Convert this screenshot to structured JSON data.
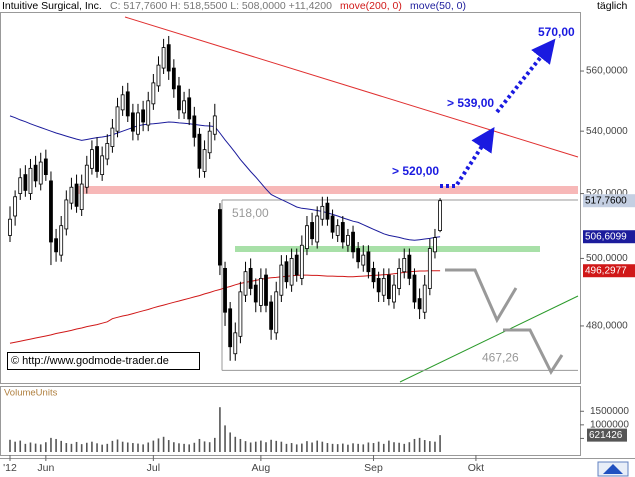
{
  "chart_data": {
    "type": "candlestick",
    "title": "Intuitive Surgical, Inc.",
    "quote": "C: 517,7600 H: 518,5500 L: 508,0000 +11,4200",
    "interval": "täglich",
    "categories": [
      "'12",
      null,
      null,
      null,
      null,
      null,
      null,
      "Jun",
      null,
      null,
      null,
      null,
      null,
      null,
      null,
      null,
      null,
      null,
      null,
      null,
      null,
      null,
      null,
      null,
      null,
      null,
      null,
      null,
      "Jul",
      null,
      null,
      null,
      null,
      null,
      null,
      null,
      null,
      null,
      null,
      null,
      null,
      null,
      null,
      null,
      null,
      null,
      null,
      null,
      null,
      "Aug",
      null,
      null,
      null,
      null,
      null,
      null,
      null,
      null,
      null,
      null,
      null,
      null,
      null,
      null,
      null,
      null,
      null,
      null,
      null,
      null,
      null,
      "Sep",
      null,
      null,
      null,
      null,
      null,
      null,
      null,
      null,
      null,
      null,
      null,
      null,
      null,
      null,
      null,
      null,
      null,
      null,
      null,
      "Okt",
      null,
      null,
      null,
      null,
      null,
      null,
      null,
      null,
      null,
      null,
      null,
      null,
      null,
      null,
      null,
      null,
      null,
      null,
      null
    ],
    "open": [
      507,
      513,
      520,
      526,
      520,
      529,
      523,
      531,
      524,
      506,
      501,
      509,
      517,
      523,
      515,
      522,
      528,
      535,
      526,
      531,
      535,
      540,
      547,
      553,
      546,
      539,
      547,
      542,
      549,
      555,
      561,
      569,
      561,
      555,
      546,
      551,
      545,
      539,
      527,
      533,
      539,
      515,
      497,
      485,
      472,
      477,
      489,
      497,
      492,
      486,
      495,
      487,
      478,
      489,
      499,
      492,
      501,
      494,
      503,
      511,
      505,
      512,
      517,
      513,
      507,
      511,
      504,
      508,
      503,
      498,
      502,
      497,
      494,
      489,
      495,
      487,
      491,
      496,
      501,
      495,
      488,
      484,
      491,
      502,
      508.5,
      null,
      null,
      null,
      null,
      null,
      null,
      null,
      null,
      null,
      null,
      null,
      null,
      null,
      null,
      null,
      null,
      null,
      null,
      null,
      null,
      null,
      null,
      null,
      null,
      null,
      null
    ],
    "high": [
      516,
      521,
      528,
      529,
      531,
      532,
      533,
      534,
      527,
      509,
      513,
      521,
      525,
      526,
      526,
      532,
      537,
      538,
      535,
      539,
      544,
      551,
      555,
      556,
      549,
      549,
      550,
      553,
      559,
      565,
      571,
      572,
      564,
      558,
      553,
      554,
      548,
      541,
      537,
      543,
      549,
      517,
      499,
      487,
      481,
      493,
      499,
      500,
      494,
      497,
      497,
      489,
      493,
      501,
      501,
      503,
      503,
      507,
      513,
      514,
      516,
      519,
      519,
      515,
      512,
      513,
      509,
      510,
      505,
      504,
      504,
      499,
      496,
      497,
      497,
      495,
      500,
      503,
      503,
      497,
      491,
      495,
      506,
      509,
      518.55,
      null,
      null,
      null,
      null,
      null,
      null,
      null,
      null,
      null,
      null,
      null,
      null,
      null,
      null,
      null,
      null,
      null,
      null,
      null,
      null,
      null,
      null,
      null,
      null,
      null,
      null
    ],
    "low": [
      505,
      510,
      518,
      519,
      518,
      522,
      521,
      524,
      498,
      499,
      499,
      507,
      515,
      514,
      513,
      520,
      526,
      525,
      524,
      529,
      533,
      538,
      545,
      543,
      537,
      537,
      540,
      540,
      547,
      553,
      559,
      557,
      551,
      544,
      544,
      542,
      535,
      525,
      525,
      531,
      537,
      495,
      480,
      470,
      470,
      475,
      487,
      489,
      484,
      484,
      484,
      476,
      476,
      487,
      491,
      490,
      493,
      492,
      501,
      504,
      503,
      510,
      510,
      506,
      505,
      503,
      502,
      500,
      497,
      496,
      494,
      491,
      487,
      487,
      486,
      485,
      489,
      494,
      492,
      485,
      482,
      482,
      489,
      500,
      508,
      null,
      null,
      null,
      null,
      null,
      null,
      null,
      null,
      null,
      null,
      null,
      null,
      null,
      null,
      null,
      null,
      null,
      null,
      null,
      null,
      null,
      null,
      null,
      null,
      null,
      null
    ],
    "close": [
      512,
      519,
      525,
      521,
      528,
      524,
      530,
      526,
      505,
      502,
      510,
      518,
      522,
      516,
      523,
      529,
      534,
      527,
      532,
      536,
      541,
      548,
      552,
      545,
      540,
      546,
      543,
      550,
      556,
      562,
      568,
      560,
      554,
      547,
      550,
      544,
      538,
      528,
      534,
      540,
      545,
      498,
      484,
      474,
      478,
      490,
      496,
      491,
      487,
      494,
      486,
      479,
      490,
      498,
      493,
      500,
      495,
      504,
      510,
      506,
      513,
      516,
      512,
      508,
      510,
      505,
      507,
      502,
      499,
      501,
      496,
      493,
      490,
      494,
      488,
      492,
      497,
      500,
      494,
      487,
      485,
      492,
      503,
      506.34,
      517.76,
      null,
      null,
      null,
      null,
      null,
      null,
      null,
      null,
      null,
      null,
      null,
      null,
      null,
      null,
      null,
      null,
      null,
      null,
      null,
      null,
      null,
      null,
      null,
      null,
      null,
      null
    ],
    "close_label": "517,7600",
    "color": "#000000",
    "log_scale": true,
    "ylim": [
      464,
      580
    ],
    "yticks": [
      {
        "value": 480,
        "label": "480,0000"
      },
      {
        "value": 500,
        "label": "500,0000"
      },
      {
        "value": 520,
        "label": "520,0000"
      },
      {
        "value": 540,
        "label": "540,0000"
      },
      {
        "value": 560,
        "label": "560,0000"
      }
    ],
    "series": [
      {
        "name": "move(200, 0)",
        "color": "#d01818",
        "last_label": "496,2977",
        "values": [
          475.0,
          475.3,
          475.6,
          475.9,
          476.2,
          476.5,
          476.8,
          477.1,
          477.4,
          477.8,
          478.1,
          478.4,
          478.7,
          479.1,
          479.4,
          479.8,
          480.1,
          480.4,
          480.8,
          481.2,
          482.1,
          482.5,
          482.9,
          483.2,
          483.6,
          484.0,
          484.4,
          484.8,
          485.3,
          485.7,
          486.1,
          486.5,
          486.9,
          487.3,
          487.7,
          488.1,
          488.5,
          488.9,
          489.4,
          489.8,
          490.3,
          490.7,
          491.2,
          491.6,
          492.1,
          492.5,
          492.8,
          493.1,
          493.4,
          493.7,
          494.0,
          494.2,
          494.3,
          494.5,
          494.6,
          494.8,
          494.9,
          495.0,
          495.0,
          494.9,
          494.9,
          494.8,
          494.7,
          494.7,
          494.6,
          494.6,
          494.5,
          494.5,
          494.6,
          494.7,
          494.8,
          494.9,
          495.0,
          495.1,
          495.2,
          495.4,
          495.6,
          495.8,
          496.0,
          496.1,
          496.2,
          496.2,
          496.3,
          496.3,
          496.2977,
          null,
          null,
          null,
          null,
          null,
          null,
          null,
          null,
          null,
          null,
          null,
          null,
          null,
          null,
          null,
          null,
          null,
          null,
          null,
          null,
          null,
          null,
          null,
          null,
          null,
          null
        ]
      },
      {
        "name": "move(50, 0)",
        "color": "#1c1c9c",
        "last_label": "506,6099",
        "values": [
          545,
          544.4,
          543.7,
          543.1,
          542.4,
          541.8,
          541.2,
          540.6,
          540.0,
          539.4,
          538.9,
          538.4,
          537.9,
          537.4,
          537.0,
          537.3,
          537.6,
          537.9,
          538.1,
          538.4,
          538.8,
          539.4,
          540.0,
          540.6,
          541.2,
          541.8,
          542.1,
          542.3,
          542.4,
          542.6,
          542.8,
          543.0,
          542.9,
          542.7,
          542.6,
          542.4,
          542.2,
          542.0,
          541.8,
          541.7,
          541.5,
          539.4,
          537.2,
          535.1,
          533.0,
          530.8,
          528.9,
          527.0,
          525.2,
          523.3,
          521.4,
          519.7,
          518.9,
          518.1,
          517.4,
          516.6,
          515.8,
          515.4,
          515.2,
          515.0,
          514.7,
          514.4,
          514.0,
          513.5,
          513.0,
          512.4,
          511.9,
          511.4,
          511.0,
          510.3,
          509.6,
          508.9,
          508.2,
          507.5,
          507.0,
          506.7,
          506.4,
          506.0,
          505.7,
          505.5,
          505.7,
          505.9,
          506.1,
          506.4,
          506.6099,
          null,
          null,
          null,
          null,
          null,
          null,
          null,
          null,
          null,
          null,
          null,
          null,
          null,
          null,
          null,
          null,
          null,
          null,
          null,
          null,
          null,
          null,
          null,
          null,
          null,
          null
        ]
      }
    ],
    "levels": [
      {
        "label": "518,00",
        "value": 518
      },
      {
        "label": "467,26",
        "value": 467.26
      }
    ],
    "targets": [
      "> 520,00",
      "> 539,00",
      "570,00"
    ],
    "source": "© http://www.godmode-trader.de",
    "volume": {
      "title": "VolumeUnits",
      "color": "#555555",
      "ylim": [
        0,
        2357000
      ],
      "yticks": [
        500000,
        1000000,
        1500000
      ],
      "values": [
        450000,
        380000,
        420000,
        300000,
        350000,
        310000,
        280000,
        360000,
        520000,
        480000,
        410000,
        330000,
        300000,
        370000,
        290000,
        340000,
        380000,
        320000,
        270000,
        300000,
        410000,
        460000,
        380000,
        350000,
        330000,
        310000,
        280000,
        350000,
        420000,
        500000,
        560000,
        440000,
        360000,
        320000,
        300000,
        280000,
        340000,
        480000,
        390000,
        360000,
        520000,
        1650000,
        980000,
        720000,
        560000,
        480000,
        400000,
        350000,
        380000,
        420000,
        360000,
        450000,
        410000,
        380000,
        300000,
        330000,
        280000,
        310000,
        400000,
        350000,
        420000,
        380000,
        330000,
        300000,
        290000,
        310000,
        270000,
        320000,
        300000,
        280000,
        350000,
        330000,
        380000,
        300000,
        420000,
        360000,
        340000,
        300000,
        360000,
        480000,
        520000,
        440000,
        400000,
        380000,
        621426,
        null,
        null,
        null,
        null,
        null,
        null,
        null,
        null,
        null,
        null,
        null,
        null,
        null,
        null,
        null,
        null,
        null,
        null,
        null,
        null,
        null,
        null,
        null,
        null,
        null,
        null
      ]
    }
  }
}
